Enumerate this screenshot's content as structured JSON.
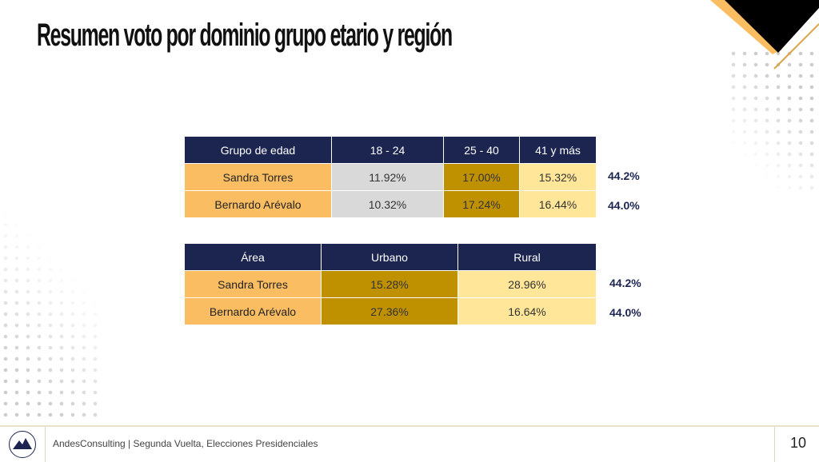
{
  "title": "Resumen voto por dominio grupo etario y región",
  "age_table": {
    "headers": [
      "Grupo de edad",
      "18 - 24",
      "25 - 40",
      "41 y más"
    ],
    "rows": [
      {
        "name": "Sandra Torres",
        "values": [
          "11.92%",
          "17.00%",
          "15.32%"
        ],
        "total": "44.2%"
      },
      {
        "name": "Bernardo Arévalo",
        "values": [
          "10.32%",
          "17.24%",
          "16.44%"
        ],
        "total": "44.0%"
      }
    ]
  },
  "area_table": {
    "headers": [
      "Área",
      "Urbano",
      "Rural"
    ],
    "rows": [
      {
        "name": "Sandra Torres",
        "values": [
          "15.28%",
          "28.96%"
        ],
        "total": "44.2%"
      },
      {
        "name": "Bernardo Arévalo",
        "values": [
          "27.36%",
          "16.64%"
        ],
        "total": "44.0%"
      }
    ]
  },
  "footer": {
    "text": "AndesConsulting | Segunda Vuelta, Elecciones Presidenciales",
    "page": "10"
  },
  "colors": {
    "navy": "#1B2550",
    "orange": "#FBBD61",
    "gold": "#BF9000",
    "light_yellow": "#FFE699",
    "grey": "#D9D9D9"
  }
}
